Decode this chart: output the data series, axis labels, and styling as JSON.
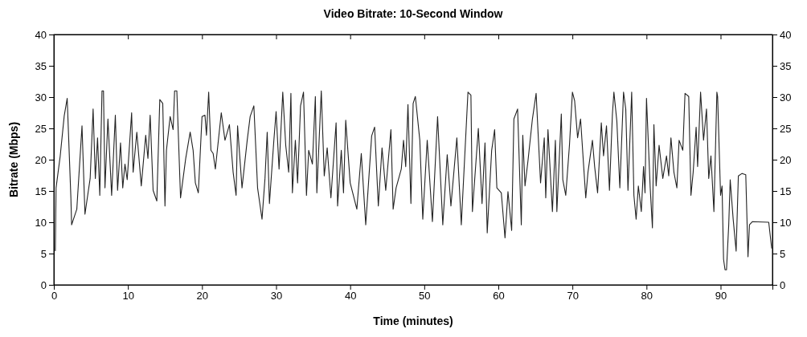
{
  "chart_data": {
    "type": "line",
    "title": "Video Bitrate: 10-Second Window",
    "xlabel": "Time (minutes)",
    "ylabel": "Bitrate (Mbps)",
    "x": [
      0.2,
      0.3,
      0.86,
      1.4,
      1.8,
      2.3,
      2.4,
      3.1,
      3.8,
      4.2,
      4.9,
      5.3,
      5.6,
      5.9,
      6.2,
      6.5,
      6.7,
      6.9,
      7.3,
      7.8,
      8.3,
      8.6,
      9.0,
      9.3,
      9.6,
      9.9,
      10.5,
      10.7,
      11.2,
      11.8,
      12.4,
      12.7,
      13.0,
      13.4,
      13.9,
      14.3,
      14.7,
      15,
      15.2,
      15.7,
      16.1,
      16.3,
      16.6,
      17.1,
      17.8,
      18.4,
      18.8,
      19.1,
      19.5,
      20,
      20.4,
      20.6,
      20.9,
      21.2,
      21.5,
      21.8,
      22.6,
      23.1,
      23.7,
      24.2,
      24.6,
      24.8,
      25.4,
      26.1,
      26.5,
      27,
      27.5,
      28.1,
      28.5,
      28.8,
      29.1,
      29.7,
      30,
      30.4,
      30.9,
      31.3,
      31.7,
      32,
      32.2,
      32.6,
      32.9,
      33.3,
      33.7,
      34.1,
      34.4,
      34.9,
      35.3,
      35.5,
      36.1,
      36.5,
      36.9,
      37.4,
      38.1,
      38.3,
      38.8,
      39.1,
      39.4,
      40,
      40.9,
      41.5,
      42.1,
      42.9,
      43.3,
      43.8,
      44.3,
      44.8,
      45.5,
      45.8,
      46.2,
      46.9,
      47.2,
      47.5,
      47.8,
      48.2,
      48.5,
      48.8,
      49.4,
      49.8,
      50.4,
      51.1,
      51.8,
      52.5,
      53.1,
      53.6,
      54.4,
      55,
      55.9,
      56.3,
      56.5,
      57.3,
      57.8,
      58.2,
      58.5,
      59.1,
      59.5,
      59.8,
      60.4,
      60.9,
      61.3,
      61.8,
      62.1,
      62.6,
      63.1,
      63.3,
      63.6,
      64,
      64.6,
      65.1,
      65.7,
      66.2,
      66.4,
      66.7,
      67.3,
      67.7,
      67.9,
      68.5,
      68.7,
      69.1,
      69.6,
      70,
      70.3,
      70.7,
      71.1,
      71.8,
      72.1,
      72.7,
      73,
      73.4,
      73.9,
      74.2,
      74.6,
      75,
      75.4,
      75.6,
      76,
      76.4,
      76.9,
      77.2,
      77.5,
      78,
      78.3,
      78.6,
      78.9,
      79.3,
      79.6,
      79.8,
      80,
      80.5,
      80.8,
      81,
      81.3,
      81.7,
      82.2,
      82.7,
      83,
      83.3,
      83.7,
      84.1,
      84.4,
      84.9,
      85.2,
      85.7,
      86,
      86.3,
      86.7,
      86.9,
      87.3,
      87.7,
      88.1,
      88.4,
      88.7,
      89.1,
      89.5,
      89.6,
      90,
      90.2,
      90.4,
      90.6,
      90.8,
      91.1,
      91.3,
      91.7,
      92.1,
      92.4,
      92.9,
      93.4,
      93.7,
      93.9,
      94.3,
      96.5,
      96.9
    ],
    "values": [
      5.4,
      15.5,
      20.6,
      27,
      29.8,
      13.9,
      9.6,
      12.1,
      25.4,
      11.3,
      17,
      28.1,
      17,
      23.5,
      14.3,
      31,
      31,
      15.5,
      26.5,
      14.3,
      27.1,
      15.1,
      22.7,
      15.5,
      19.3,
      16.8,
      27.5,
      18,
      24.4,
      15.8,
      23.9,
      20.2,
      27.1,
      15.1,
      13.4,
      29.6,
      29,
      12.6,
      21.5,
      26.9,
      24.8,
      31,
      31,
      13.9,
      20.2,
      24.4,
      21.5,
      16.3,
      14.7,
      26.9,
      27.1,
      23.9,
      30.8,
      21.5,
      21,
      18.5,
      27.5,
      23.1,
      25.6,
      18,
      14.3,
      25.4,
      15.5,
      23.1,
      26.9,
      28.6,
      15.5,
      10.5,
      17,
      24.4,
      13,
      23.1,
      27.7,
      18.5,
      30.8,
      22.3,
      18,
      30.6,
      14.7,
      23.1,
      16.3,
      28.6,
      30.8,
      14.3,
      21.5,
      19.3,
      30.1,
      14.7,
      31,
      17.4,
      21.9,
      13.9,
      25.9,
      12.6,
      21.5,
      14.7,
      26.3,
      16.3,
      12.1,
      21,
      9.6,
      23.8,
      25.2,
      12.6,
      21.9,
      15.1,
      24.8,
      12.1,
      15.5,
      18.5,
      23.1,
      18.9,
      28.8,
      13,
      29,
      30.1,
      23.1,
      10.5,
      23.1,
      10.1,
      26.9,
      9.6,
      20.8,
      12.6,
      23.5,
      9.6,
      30.8,
      30.3,
      11.7,
      25,
      13,
      22.7,
      8.3,
      21.5,
      24.8,
      15.5,
      14.7,
      7.5,
      14.9,
      8.7,
      26.5,
      28.1,
      9.6,
      23.9,
      15.8,
      19.8,
      26.5,
      30.6,
      16.3,
      23.5,
      13.9,
      24.8,
      11.7,
      23.1,
      11.7,
      27.3,
      16.8,
      14.3,
      22.3,
      30.8,
      29.4,
      23.5,
      26.5,
      13.9,
      18,
      23.1,
      18.9,
      14.7,
      25.9,
      20.6,
      25.4,
      15.1,
      27.3,
      30.8,
      26.1,
      15.5,
      30.8,
      28.1,
      15.1,
      30.8,
      14.3,
      10.5,
      15.8,
      11.7,
      18.9,
      14.7,
      29.8,
      15.5,
      9.1,
      25.6,
      15.8,
      22.3,
      17,
      20.6,
      17.4,
      23.5,
      18,
      15.5,
      23.1,
      21.5,
      30.6,
      30.1,
      14.3,
      18,
      25.2,
      18.9,
      30.8,
      23.1,
      28.1,
      17,
      20.6,
      11.7,
      30.8,
      30.1,
      14.3,
      15.8,
      4.1,
      2.4,
      2.4,
      9.6,
      16.8,
      10.5,
      5.4,
      17.4,
      17.8,
      17.6,
      4.5,
      9.6,
      10.1,
      10,
      5.8
    ],
    "color": "#222222",
    "xlim": [
      0,
      97
    ],
    "xticks": [
      0,
      10,
      20,
      30,
      40,
      50,
      60,
      70,
      80,
      90
    ],
    "ylim": [
      0,
      40
    ],
    "yticks": [
      0,
      5,
      10,
      15,
      20,
      25,
      30,
      35,
      40
    ],
    "y2lim": [
      0,
      40
    ],
    "y2ticks": [
      0,
      5,
      10,
      15,
      20,
      25,
      30,
      35,
      40
    ],
    "grid": false
  }
}
